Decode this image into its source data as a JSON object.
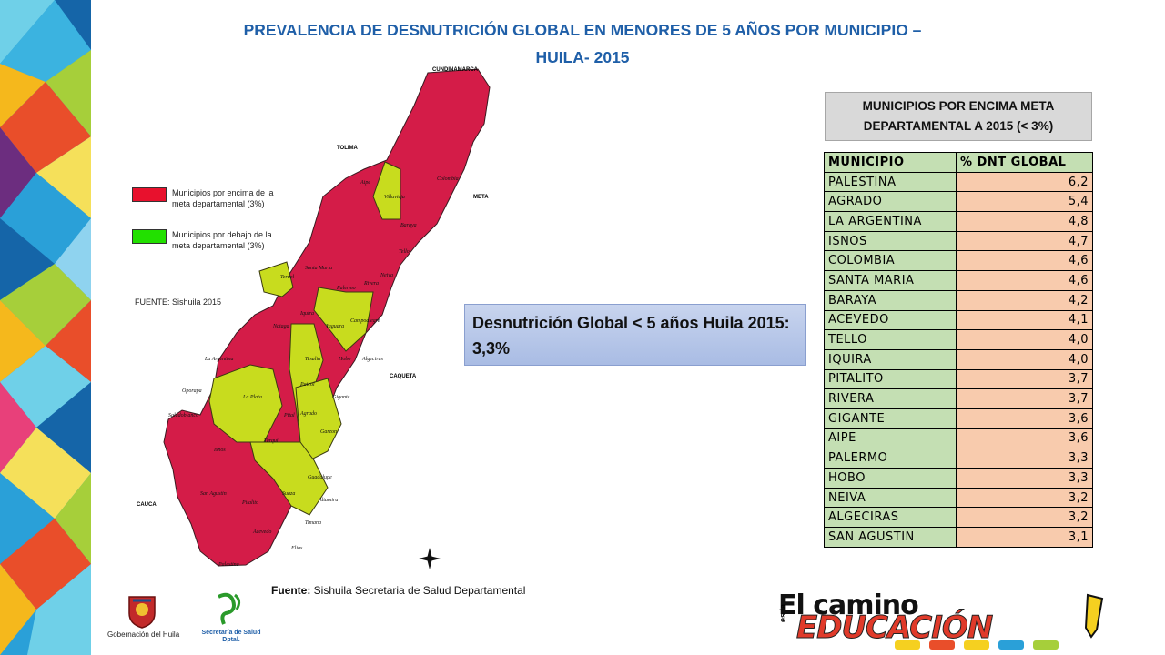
{
  "title_line1": "PREVALENCIA DE DESNUTRICIÓN GLOBAL  EN MENORES DE   5 AÑOS POR MUNICIPIO –",
  "title_line2": "HUILA- 2015",
  "map": {
    "legend": [
      {
        "text": "Municipios por encima de la meta departamental  (3%)",
        "color": "#e8112d"
      },
      {
        "text": "Municipios por debajo de la meta departamental (3%)",
        "color": "#22e000"
      }
    ],
    "fuente": "FUENTE: Sishuila 2015",
    "colors": {
      "above": "#d41c48",
      "below": "#c8dc1e"
    },
    "neighbors": [
      "CUNDINAMARCA",
      "TOLIMA",
      "META",
      "CAQUETA",
      "CAUCA"
    ],
    "municipality_labels": [
      "Colombia",
      "Aipe",
      "Villavieja",
      "Baraya",
      "Tello",
      "Neiva",
      "Rivera",
      "Palermo",
      "Santa Maria",
      "Teruel",
      "Iquira",
      "Yaguara",
      "Campoalegre",
      "Nataga",
      "Tesalia",
      "Hobo",
      "Algeciras",
      "La Argentina",
      "Paicol",
      "Gigante",
      "La Plata",
      "Oporapa",
      "Saladoblanco",
      "Pital",
      "Agrado",
      "Garzon",
      "Tarqui",
      "Isnos",
      "Suaza",
      "Guadalupe",
      "San Agustin",
      "Altamira",
      "Pitalito",
      "Timana",
      "Acevedo",
      "Elias",
      "Palestina"
    ]
  },
  "callout": "Desnutrición Global  < 5 años Huila 2015: 3,3%",
  "meta_box": {
    "line1": "MUNICIPIOS POR ENCIMA META",
    "line2": "DEPARTAMENTAL A 2015  (< 3%)"
  },
  "table": {
    "headers": [
      "MUNICIPIO",
      "% DNT GLOBAL"
    ],
    "rows": [
      [
        "PALESTINA",
        "6,2"
      ],
      [
        "AGRADO",
        "5,4"
      ],
      [
        "LA ARGENTINA",
        "4,8"
      ],
      [
        "ISNOS",
        "4,7"
      ],
      [
        "COLOMBIA",
        "4,6"
      ],
      [
        "SANTA MARIA",
        "4,6"
      ],
      [
        "BARAYA",
        "4,2"
      ],
      [
        "ACEVEDO",
        "4,1"
      ],
      [
        "TELLO",
        "4,0"
      ],
      [
        "IQUIRA",
        "4,0"
      ],
      [
        "PITALITO",
        "3,7"
      ],
      [
        "RIVERA",
        "3,7"
      ],
      [
        "GIGANTE",
        "3,6"
      ],
      [
        "AIPE",
        "3,6"
      ],
      [
        "PALERMO",
        "3,3"
      ],
      [
        "HOBO",
        "3,3"
      ],
      [
        "NEIVA",
        "3,2"
      ],
      [
        "ALGECIRAS",
        "3,2"
      ],
      [
        "SAN AGUSTIN",
        "3,1"
      ]
    ]
  },
  "source_label": "Fuente:",
  "source_text": " Sishuila Secretaria de Salud Departamental",
  "gob_label": "Gobernación  del Huila",
  "salud_label": "Secretaría de Salud Dptal.",
  "edu_camino": "El camino",
  "edu_esla": "es la",
  "edu_word": "EDUCACIÓN"
}
